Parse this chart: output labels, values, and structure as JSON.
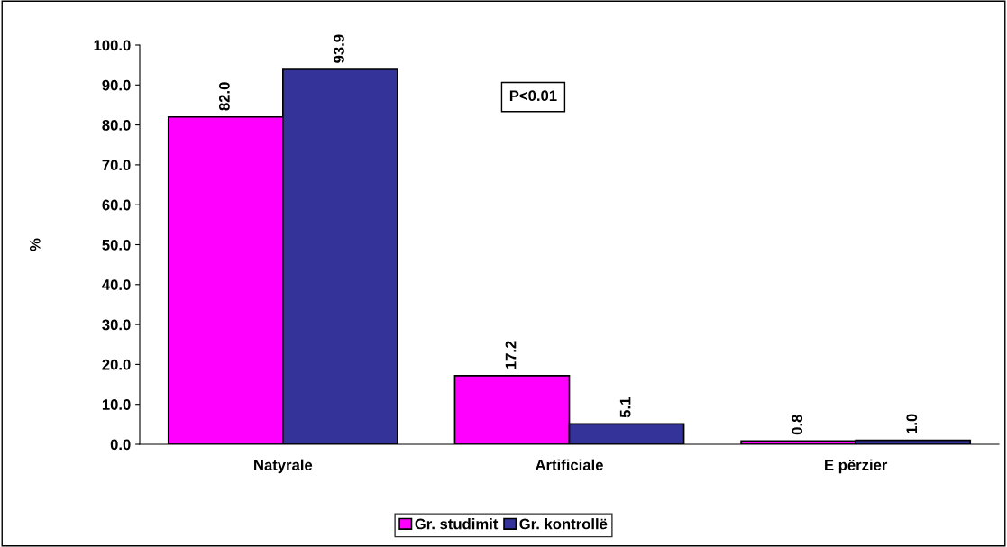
{
  "chart_data": {
    "type": "bar",
    "ylabel": "%",
    "categories": [
      "Natyrale",
      "Artificiale",
      "E përzier"
    ],
    "series": [
      {
        "name": "Gr. studimit",
        "color": "#ff00ff",
        "values": [
          82.0,
          17.2,
          0.8
        ],
        "value_labels": [
          "82.0",
          "17.2",
          "0.8"
        ]
      },
      {
        "name": "Gr. kontrollë",
        "color": "#333399",
        "values": [
          93.9,
          5.1,
          1.0
        ],
        "value_labels": [
          "93.9",
          "5.1",
          "1.0"
        ]
      }
    ],
    "ylim": [
      0,
      100
    ],
    "yticks": [
      {
        "value": 0,
        "label": "0.0"
      },
      {
        "value": 10,
        "label": "10.0"
      },
      {
        "value": 20,
        "label": "20.0"
      },
      {
        "value": 30,
        "label": "30.0"
      },
      {
        "value": 40,
        "label": "40.0"
      },
      {
        "value": 50,
        "label": "50.0"
      },
      {
        "value": 60,
        "label": "60.0"
      },
      {
        "value": 70,
        "label": "70.0"
      },
      {
        "value": 80,
        "label": "80.0"
      },
      {
        "value": 90,
        "label": "90.0"
      },
      {
        "value": 100,
        "label": "100.0"
      }
    ],
    "grid": false,
    "legend": "bottom",
    "annotations": [
      "P<0.01"
    ]
  }
}
